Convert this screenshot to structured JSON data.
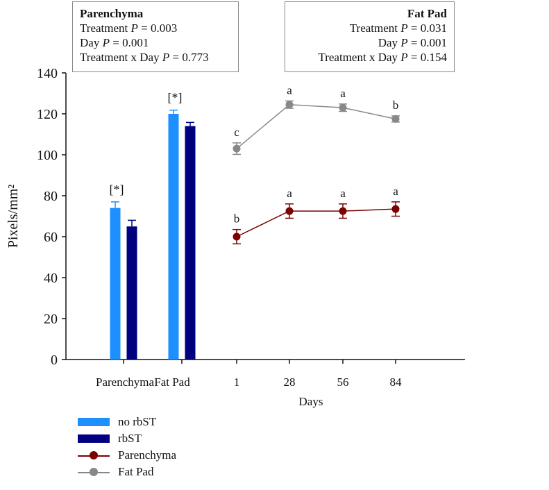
{
  "chart_data": {
    "type": "bar+line",
    "ylabel": "Pixels/mm²",
    "xlabel": "Days",
    "ylim": [
      0,
      140
    ],
    "yticks": [
      0,
      20,
      40,
      60,
      80,
      100,
      120,
      140
    ],
    "bar_categories": [
      "Parenchyma",
      "Fat Pad"
    ],
    "bar_series": [
      {
        "name": "no rbST",
        "color": "#1E8FFF",
        "values": [
          74,
          120
        ],
        "errors": [
          3,
          1.8
        ]
      },
      {
        "name": "rbST",
        "color": "#000080",
        "values": [
          65,
          114
        ],
        "errors": [
          3,
          1.8
        ]
      }
    ],
    "bar_annotations": [
      "[*]",
      "[*]"
    ],
    "line_x": [
      "1",
      "28",
      "56",
      "84"
    ],
    "line_series": [
      {
        "name": "Parenchyma",
        "color": "#7B0000",
        "values": [
          60,
          72.5,
          72.5,
          73.5
        ],
        "errors": [
          3.5,
          3.5,
          3.5,
          3.5
        ],
        "letters": [
          "b",
          "a",
          "a",
          "a"
        ]
      },
      {
        "name": "Fat Pad",
        "color": "#888888",
        "values": [
          103,
          124.5,
          123,
          117.5
        ],
        "errors": [
          2.8,
          1.8,
          1.8,
          1.5
        ],
        "letters": [
          "c",
          "a",
          "a",
          "b"
        ]
      }
    ],
    "legend": [
      "no rbST",
      "rbST",
      "Parenchyma",
      "Fat Pad"
    ],
    "legend_position": "bottom-left",
    "grid": false
  },
  "stats": {
    "parenchyma": {
      "title": "Parenchyma",
      "lines": [
        [
          "Treatment ",
          "0.003"
        ],
        [
          "Day ",
          "0.001"
        ],
        [
          "Treatment x Day ",
          "0.773"
        ]
      ]
    },
    "fat_pad": {
      "title": "Fat Pad",
      "lines": [
        [
          "Treatment ",
          "0.031"
        ],
        [
          "Day ",
          "0.001"
        ],
        [
          "Treatment x Day ",
          "0.154"
        ]
      ]
    }
  }
}
